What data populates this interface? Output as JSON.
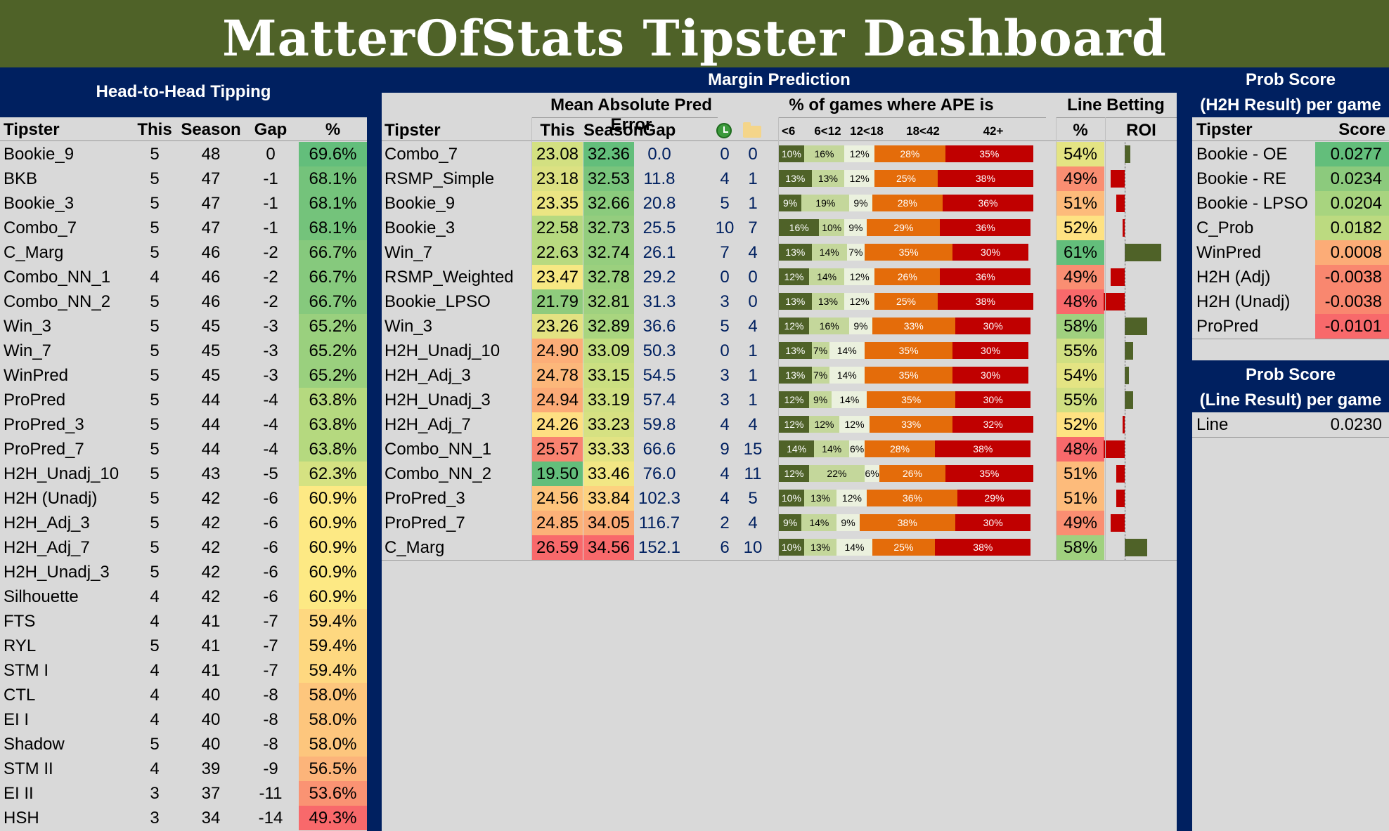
{
  "title": "MatterOfStats Tipster Dashboard",
  "h2h": {
    "heading": "Head-to-Head Tipping",
    "columns": [
      "Tipster",
      "This",
      "Season",
      "Gap",
      "%"
    ],
    "rows": [
      {
        "tipster": "Bookie_9",
        "this": "5",
        "season": "48",
        "gap": "0",
        "pct": "69.6%",
        "color": "#63be7b"
      },
      {
        "tipster": "BKB",
        "this": "5",
        "season": "47",
        "gap": "-1",
        "pct": "68.1%",
        "color": "#74c37b"
      },
      {
        "tipster": "Bookie_3",
        "this": "5",
        "season": "47",
        "gap": "-1",
        "pct": "68.1%",
        "color": "#74c37b"
      },
      {
        "tipster": "Combo_7",
        "this": "5",
        "season": "47",
        "gap": "-1",
        "pct": "68.1%",
        "color": "#74c37b"
      },
      {
        "tipster": "C_Marg",
        "this": "5",
        "season": "46",
        "gap": "-2",
        "pct": "66.7%",
        "color": "#86c97d"
      },
      {
        "tipster": "Combo_NN_1",
        "this": "4",
        "season": "46",
        "gap": "-2",
        "pct": "66.7%",
        "color": "#86c97d"
      },
      {
        "tipster": "Combo_NN_2",
        "this": "5",
        "season": "46",
        "gap": "-2",
        "pct": "66.7%",
        "color": "#86c97d"
      },
      {
        "tipster": "Win_3",
        "this": "5",
        "season": "45",
        "gap": "-3",
        "pct": "65.2%",
        "color": "#9ad07e"
      },
      {
        "tipster": "Win_7",
        "this": "5",
        "season": "45",
        "gap": "-3",
        "pct": "65.2%",
        "color": "#9ad07e"
      },
      {
        "tipster": "WinPred",
        "this": "5",
        "season": "45",
        "gap": "-3",
        "pct": "65.2%",
        "color": "#9ad07e"
      },
      {
        "tipster": "ProPred",
        "this": "5",
        "season": "44",
        "gap": "-4",
        "pct": "63.8%",
        "color": "#b5d97f"
      },
      {
        "tipster": "ProPred_3",
        "this": "5",
        "season": "44",
        "gap": "-4",
        "pct": "63.8%",
        "color": "#b5d97f"
      },
      {
        "tipster": "ProPred_7",
        "this": "5",
        "season": "44",
        "gap": "-4",
        "pct": "63.8%",
        "color": "#b5d97f"
      },
      {
        "tipster": "H2H_Unadj_10",
        "this": "5",
        "season": "43",
        "gap": "-5",
        "pct": "62.3%",
        "color": "#d5e282"
      },
      {
        "tipster": "H2H (Unadj)",
        "this": "5",
        "season": "42",
        "gap": "-6",
        "pct": "60.9%",
        "color": "#fde984"
      },
      {
        "tipster": "H2H_Adj_3",
        "this": "5",
        "season": "42",
        "gap": "-6",
        "pct": "60.9%",
        "color": "#fde984"
      },
      {
        "tipster": "H2H_Adj_7",
        "this": "5",
        "season": "42",
        "gap": "-6",
        "pct": "60.9%",
        "color": "#fde984"
      },
      {
        "tipster": "H2H_Unadj_3",
        "this": "5",
        "season": "42",
        "gap": "-6",
        "pct": "60.9%",
        "color": "#fde984"
      },
      {
        "tipster": "Silhouette",
        "this": "4",
        "season": "42",
        "gap": "-6",
        "pct": "60.9%",
        "color": "#fde984"
      },
      {
        "tipster": "FTS",
        "this": "4",
        "season": "41",
        "gap": "-7",
        "pct": "59.4%",
        "color": "#fed880"
      },
      {
        "tipster": "RYL",
        "this": "5",
        "season": "41",
        "gap": "-7",
        "pct": "59.4%",
        "color": "#fed880"
      },
      {
        "tipster": "STM I",
        "this": "4",
        "season": "41",
        "gap": "-7",
        "pct": "59.4%",
        "color": "#fed880"
      },
      {
        "tipster": "CTL",
        "this": "4",
        "season": "40",
        "gap": "-8",
        "pct": "58.0%",
        "color": "#fdc67d"
      },
      {
        "tipster": "EI I",
        "this": "4",
        "season": "40",
        "gap": "-8",
        "pct": "58.0%",
        "color": "#fdc67d"
      },
      {
        "tipster": "Shadow",
        "this": "5",
        "season": "40",
        "gap": "-8",
        "pct": "58.0%",
        "color": "#fdc67d"
      },
      {
        "tipster": "STM II",
        "this": "4",
        "season": "39",
        "gap": "-9",
        "pct": "56.5%",
        "color": "#fcb47a"
      },
      {
        "tipster": "EI II",
        "this": "3",
        "season": "37",
        "gap": "-11",
        "pct": "53.6%",
        "color": "#fa9373"
      },
      {
        "tipster": "HSH",
        "this": "3",
        "season": "34",
        "gap": "-14",
        "pct": "49.3%",
        "color": "#f8696b"
      }
    ]
  },
  "margin": {
    "heading": "Margin Prediction",
    "mape_heading": "Mean Absolute Pred Error",
    "ape_heading": "% of games where APE is",
    "line_heading": "Line Betting",
    "columns": {
      "tipster": "Tipster",
      "this": "This",
      "season": "Season",
      "gap": "Gap",
      "pct": "%",
      "roi": "ROI"
    },
    "icon1": "green-clock-icon",
    "icon2": "folder-icon",
    "ape_bins": [
      "<6",
      "6<12",
      "12<18",
      "18<42",
      "42+"
    ],
    "ape_colors": [
      "#4f6228",
      "#c4d79b",
      "#ebf1de",
      "#e46c0a",
      "#c00000"
    ],
    "rows": [
      {
        "tipster": "Combo_7",
        "this": "23.08",
        "this_color": "#d3e081",
        "season": "32.36",
        "season_color": "#63be7b",
        "gap": "0.0",
        "c1": "0",
        "c2": "0",
        "ape": [
          10,
          16,
          12,
          28,
          35
        ],
        "ape_labels": [
          "10%",
          "16%",
          "12%",
          "28%",
          "35%"
        ],
        "line_pct": "54%",
        "line_color": "#e4e483",
        "roi": 0.014
      },
      {
        "tipster": "RSMP_Simple",
        "this": "23.18",
        "this_color": "#dce182",
        "season": "32.53",
        "season_color": "#79c47c",
        "gap": "11.8",
        "c1": "4",
        "c2": "1",
        "ape": [
          13,
          13,
          12,
          25,
          38
        ],
        "ape_labels": [
          "13%",
          "13%",
          "12%",
          "25%",
          "38%"
        ],
        "line_pct": "49%",
        "line_color": "#fa8e72",
        "roi": -0.036
      },
      {
        "tipster": "Bookie_9",
        "this": "23.35",
        "this_color": "#ebe583",
        "season": "32.66",
        "season_color": "#8bcb7d",
        "gap": "20.8",
        "c1": "5",
        "c2": "1",
        "ape": [
          9,
          19,
          9,
          28,
          36
        ],
        "ape_labels": [
          "9%",
          "19%",
          "9%",
          "28%",
          "36%"
        ],
        "line_pct": "51%",
        "line_color": "#fdbb7b",
        "roi": -0.022
      },
      {
        "tipster": "Bookie_3",
        "this": "22.58",
        "this_color": "#b6d980",
        "season": "32.73",
        "season_color": "#94cd7e",
        "gap": "25.5",
        "c1": "10",
        "c2": "7",
        "ape": [
          16,
          10,
          9,
          29,
          36
        ],
        "ape_labels": [
          "16%",
          "10%",
          "9%",
          "29%",
          "36%"
        ],
        "line_pct": "52%",
        "line_color": "#fee282",
        "roi": -0.005
      },
      {
        "tipster": "Win_7",
        "this": "22.63",
        "this_color": "#b9da80",
        "season": "32.74",
        "season_color": "#95ce7e",
        "gap": "26.1",
        "c1": "7",
        "c2": "4",
        "ape": [
          13,
          14,
          7,
          35,
          30
        ],
        "ape_labels": [
          "13%",
          "14%",
          "7%",
          "35%",
          "30%"
        ],
        "line_pct": "61%",
        "line_color": "#63be7b",
        "roi": 0.094
      },
      {
        "tipster": "RSMP_Weighted",
        "this": "23.47",
        "this_color": "#f7e883",
        "season": "32.78",
        "season_color": "#9bd07e",
        "gap": "29.2",
        "c1": "0",
        "c2": "0",
        "ape": [
          12,
          14,
          12,
          26,
          36
        ],
        "ape_labels": [
          "12%",
          "14%",
          "12%",
          "26%",
          "36%"
        ],
        "line_pct": "49%",
        "line_color": "#fa8e72",
        "roi": -0.036
      },
      {
        "tipster": "Bookie_LPSO",
        "this": "21.79",
        "this_color": "#8fcb7d",
        "season": "32.81",
        "season_color": "#9fd17f",
        "gap": "31.3",
        "c1": "3",
        "c2": "0",
        "ape": [
          13,
          13,
          12,
          25,
          38
        ],
        "ape_labels": [
          "13%",
          "13%",
          "12%",
          "25%",
          "38%"
        ],
        "line_pct": "48%",
        "line_color": "#f8696b",
        "roi": -0.054
      },
      {
        "tipster": "Win_3",
        "this": "23.26",
        "this_color": "#e3e282",
        "season": "32.89",
        "season_color": "#a9d57f",
        "gap": "36.6",
        "c1": "5",
        "c2": "4",
        "ape": [
          12,
          16,
          9,
          33,
          30
        ],
        "ape_labels": [
          "12%",
          "16%",
          "9%",
          "33%",
          "30%"
        ],
        "line_pct": "58%",
        "line_color": "#a0d17f",
        "roi": 0.058
      },
      {
        "tipster": "H2H_Unadj_10",
        "this": "24.90",
        "this_color": "#fcae78",
        "season": "33.09",
        "season_color": "#c3dd81",
        "gap": "50.3",
        "c1": "0",
        "c2": "1",
        "ape": [
          13,
          7,
          14,
          35,
          30
        ],
        "ape_labels": [
          "13%",
          "7%",
          "14%",
          "35%",
          "30%"
        ],
        "line_pct": "55%",
        "line_color": "#d0df82",
        "roi": 0.022
      },
      {
        "tipster": "H2H_Adj_3",
        "this": "24.78",
        "this_color": "#fcb77a",
        "season": "33.15",
        "season_color": "#cbdf81",
        "gap": "54.5",
        "c1": "3",
        "c2": "1",
        "ape": [
          13,
          7,
          14,
          35,
          30
        ],
        "ape_labels": [
          "13%",
          "7%",
          "14%",
          "35%",
          "30%"
        ],
        "line_pct": "54%",
        "line_color": "#e4e483",
        "roi": 0.01
      },
      {
        "tipster": "H2H_Unadj_3",
        "this": "24.94",
        "this_color": "#fcab77",
        "season": "33.19",
        "season_color": "#d1e082",
        "gap": "57.4",
        "c1": "3",
        "c2": "1",
        "ape": [
          12,
          9,
          14,
          35,
          30
        ],
        "ape_labels": [
          "12%",
          "9%",
          "14%",
          "35%",
          "30%"
        ],
        "line_pct": "55%",
        "line_color": "#d0df82",
        "roi": 0.022
      },
      {
        "tipster": "H2H_Adj_7",
        "this": "24.26",
        "this_color": "#fedf82",
        "season": "33.23",
        "season_color": "#d6e182",
        "gap": "59.8",
        "c1": "4",
        "c2": "4",
        "ape": [
          12,
          12,
          12,
          33,
          32
        ],
        "ape_labels": [
          "12%",
          "12%",
          "12%",
          "33%",
          "32%"
        ],
        "line_pct": "52%",
        "line_color": "#fee282",
        "roi": -0.005
      },
      {
        "tipster": "Combo_NN_1",
        "this": "25.57",
        "this_color": "#f98370",
        "season": "33.33",
        "season_color": "#e2e383",
        "gap": "66.6",
        "c1": "9",
        "c2": "15",
        "ape": [
          14,
          14,
          6,
          28,
          38
        ],
        "ape_labels": [
          "14%",
          "14%",
          "6%",
          "28%",
          "38%"
        ],
        "line_pct": "48%",
        "line_color": "#f8696b",
        "roi": -0.054
      },
      {
        "tipster": "Combo_NN_2",
        "this": "19.50",
        "this_color": "#63be7b",
        "season": "33.46",
        "season_color": "#f2e784",
        "gap": "76.0",
        "c1": "4",
        "c2": "11",
        "ape": [
          12,
          22,
          6,
          26,
          35
        ],
        "ape_labels": [
          "12%",
          "22%",
          "6%",
          "26%",
          "35%"
        ],
        "line_pct": "51%",
        "line_color": "#fdbb7b",
        "roi": -0.022
      },
      {
        "tipster": "ProPred_3",
        "this": "24.56",
        "this_color": "#fdc47c",
        "season": "33.84",
        "season_color": "#fdd27f",
        "gap": "102.3",
        "c1": "4",
        "c2": "5",
        "ape": [
          10,
          13,
          12,
          36,
          29
        ],
        "ape_labels": [
          "10%",
          "13%",
          "12%",
          "36%",
          "29%"
        ],
        "line_pct": "51%",
        "line_color": "#fdbb7b",
        "roi": -0.022
      },
      {
        "tipster": "ProPred_7",
        "this": "24.85",
        "this_color": "#fcb178",
        "season": "34.05",
        "season_color": "#fbab77",
        "gap": "116.7",
        "c1": "2",
        "c2": "4",
        "ape": [
          9,
          14,
          9,
          38,
          30
        ],
        "ape_labels": [
          "9%",
          "14%",
          "9%",
          "38%",
          "30%"
        ],
        "line_pct": "49%",
        "line_color": "#fa8e72",
        "roi": -0.036
      },
      {
        "tipster": "C_Marg",
        "this": "26.59",
        "this_color": "#f8696b",
        "season": "34.56",
        "season_color": "#f8696b",
        "gap": "152.1",
        "c1": "6",
        "c2": "10",
        "ape": [
          10,
          13,
          14,
          25,
          38
        ],
        "ape_labels": [
          "10%",
          "13%",
          "14%",
          "25%",
          "38%"
        ],
        "line_pct": "58%",
        "line_color": "#a0d17f",
        "roi": 0.058
      }
    ]
  },
  "prob_h2h": {
    "heading_line1": "Prob Score",
    "heading_line2": "(H2H Result) per game",
    "columns": [
      "Tipster",
      "Score"
    ],
    "rows": [
      {
        "tipster": "Bookie - OE",
        "score": "0.0277",
        "color": "#63be7b"
      },
      {
        "tipster": "Bookie - RE",
        "score": "0.0234",
        "color": "#8cca7d"
      },
      {
        "tipster": "Bookie - LPSO",
        "score": "0.0204",
        "color": "#a8d47f"
      },
      {
        "tipster": "C_Prob",
        "score": "0.0182",
        "color": "#bcda80"
      },
      {
        "tipster": "WinPred",
        "score": "0.0008",
        "color": "#fcac77"
      },
      {
        "tipster": "H2H (Adj)",
        "score": "-0.0038",
        "color": "#f9876f"
      },
      {
        "tipster": "H2H (Unadj)",
        "score": "-0.0038",
        "color": "#f9876f"
      },
      {
        "tipster": "ProPred",
        "score": "-0.0101",
        "color": "#f8696b"
      }
    ]
  },
  "prob_line": {
    "heading_line1": "Prob Score",
    "heading_line2": "(Line Result) per game",
    "rows": [
      {
        "tipster": "Line",
        "score": "0.0230"
      }
    ]
  }
}
